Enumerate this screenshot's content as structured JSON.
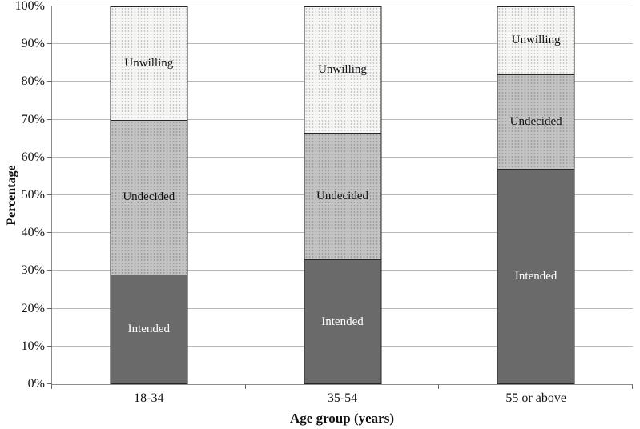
{
  "chart_data": {
    "type": "bar",
    "stacked": true,
    "percent_stacked": true,
    "title": "",
    "xlabel": "Age group (years)",
    "ylabel": "Percentage",
    "categories": [
      "18-34",
      "35-54",
      "55 or above"
    ],
    "series": [
      {
        "name": "Intended",
        "values": [
          29,
          33,
          57
        ],
        "fill": "#6a6a6a",
        "pattern": "solid",
        "dot_color": null,
        "label_color": "#ffffff"
      },
      {
        "name": "Undecided",
        "values": [
          41,
          33.5,
          25
        ],
        "fill": "#c3c3c3",
        "pattern": "dots",
        "dot_color": "#9d9d9d",
        "label_color": "#111111"
      },
      {
        "name": "Unwilling",
        "values": [
          30,
          33.5,
          18
        ],
        "fill": "#f6f6f5",
        "pattern": "dots",
        "dot_color": "#cbcbcb",
        "label_color": "#111111"
      }
    ],
    "ylim": [
      0,
      100
    ],
    "yticks": [
      "0%",
      "10%",
      "20%",
      "30%",
      "40%",
      "50%",
      "60%",
      "70%",
      "80%",
      "90%",
      "100%"
    ],
    "grid": true,
    "gridline_color": "#b8b8b8",
    "axis_color": "#8c8c8c",
    "segment_border_color": "#262626",
    "legend": "labels-inside-segments"
  }
}
